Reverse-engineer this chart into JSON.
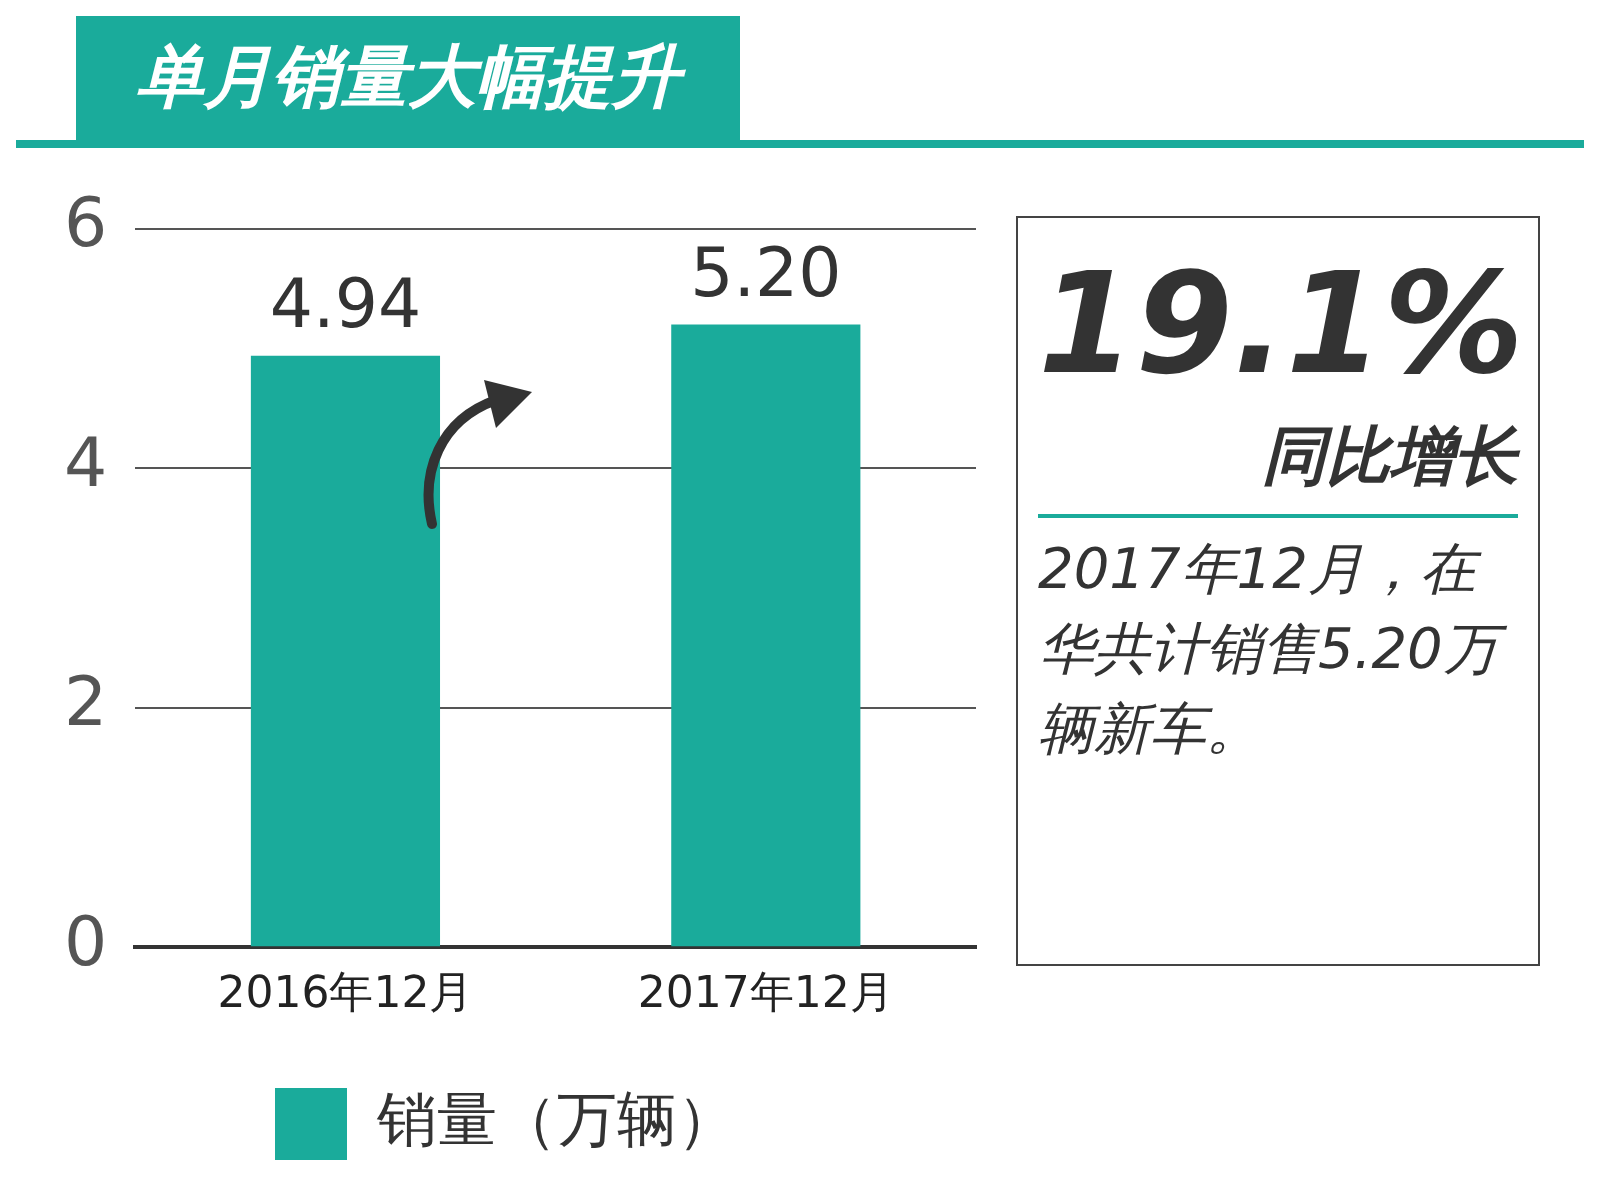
{
  "chart_data": {
    "type": "bar",
    "title": "单月销量大幅提升",
    "categories": [
      "2016年12月",
      "2017年12月"
    ],
    "series": [
      {
        "name": "销量（万辆）",
        "color": "#1aab9b",
        "values": [
          4.94,
          5.2
        ],
        "value_labels": [
          "4.94",
          "5.20"
        ]
      }
    ],
    "ylim": [
      0,
      6
    ],
    "yticks": [
      0,
      2,
      4,
      6
    ],
    "grid": "y",
    "legend": "bottom",
    "annotations": [
      "19.1%",
      "同比增长",
      "2017年12月，在华共计销售5.20万辆新车。"
    ]
  }
}
